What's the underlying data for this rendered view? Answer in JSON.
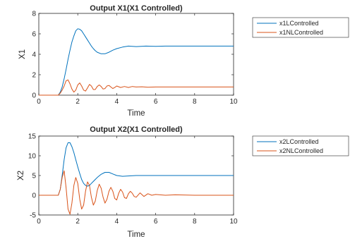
{
  "chart_data": [
    {
      "type": "line",
      "title": "Output X1(X1 Controlled)",
      "xlabel": "Time",
      "ylabel": "X1",
      "xlim": [
        0,
        10
      ],
      "ylim": [
        0,
        8
      ],
      "xticks": [
        "0",
        "2",
        "4",
        "6",
        "8",
        "10"
      ],
      "yticks": [
        "0",
        "2",
        "4",
        "6",
        "8"
      ],
      "grid": false,
      "legend_position": "outside-top-right",
      "series": [
        {
          "name": "x1LControlled",
          "color": "#0072BD",
          "x": [
            0,
            1,
            1.1,
            1.2,
            1.3,
            1.4,
            1.5,
            1.6,
            1.7,
            1.8,
            1.9,
            2.0,
            2.1,
            2.2,
            2.3,
            2.4,
            2.5,
            2.6,
            2.7,
            2.8,
            2.9,
            3.0,
            3.2,
            3.4,
            3.6,
            3.8,
            4.0,
            4.3,
            4.6,
            5.0,
            5.5,
            6.0,
            6.5,
            7.0,
            8.0,
            9.0,
            10.0
          ],
          "y": [
            0,
            0,
            0.3,
            0.8,
            1.6,
            2.5,
            3.5,
            4.4,
            5.2,
            5.8,
            6.3,
            6.5,
            6.45,
            6.3,
            6.0,
            5.7,
            5.4,
            5.1,
            4.8,
            4.55,
            4.35,
            4.2,
            4.05,
            4.05,
            4.2,
            4.4,
            4.55,
            4.7,
            4.8,
            4.75,
            4.8,
            4.78,
            4.8,
            4.8,
            4.8,
            4.8,
            4.8
          ]
        },
        {
          "name": "x1NLControlled",
          "color": "#D95319",
          "x": [
            0,
            1,
            1.1,
            1.2,
            1.3,
            1.4,
            1.5,
            1.6,
            1.7,
            1.8,
            1.9,
            2.0,
            2.1,
            2.2,
            2.3,
            2.4,
            2.5,
            2.6,
            2.7,
            2.8,
            2.9,
            3.0,
            3.1,
            3.2,
            3.3,
            3.4,
            3.5,
            3.6,
            3.7,
            3.8,
            3.9,
            4.0,
            4.2,
            4.4,
            4.6,
            4.8,
            5.0,
            5.3,
            5.6,
            6.0,
            6.5,
            7.0,
            8.0,
            9.0,
            10.0
          ],
          "y": [
            0,
            0,
            0.2,
            0.5,
            0.9,
            1.4,
            1.5,
            1.1,
            0.6,
            0.3,
            0.5,
            1.0,
            1.2,
            0.9,
            0.5,
            0.4,
            0.7,
            1.05,
            0.9,
            0.55,
            0.55,
            0.85,
            1.0,
            0.85,
            0.6,
            0.65,
            0.9,
            0.95,
            0.8,
            0.65,
            0.75,
            0.9,
            0.75,
            0.85,
            0.75,
            0.85,
            0.8,
            0.82,
            0.78,
            0.8,
            0.8,
            0.8,
            0.8,
            0.8,
            0.8
          ]
        }
      ]
    },
    {
      "type": "line",
      "title": "Output X2(X1 Controlled)",
      "xlabel": "Time",
      "ylabel": "X2",
      "xlim": [
        0,
        10
      ],
      "ylim": [
        -5,
        15
      ],
      "xticks": [
        "0",
        "2",
        "4",
        "6",
        "8",
        "10"
      ],
      "yticks": [
        "-5",
        "0",
        "5",
        "10",
        "15"
      ],
      "grid": false,
      "legend_position": "outside-top-right",
      "series": [
        {
          "name": "x2LControlled",
          "color": "#0072BD",
          "x": [
            0,
            1,
            1.1,
            1.2,
            1.3,
            1.4,
            1.5,
            1.6,
            1.7,
            1.8,
            1.9,
            2.0,
            2.1,
            2.2,
            2.3,
            2.4,
            2.5,
            2.6,
            2.7,
            2.8,
            2.9,
            3.0,
            3.2,
            3.4,
            3.6,
            3.8,
            4.0,
            4.3,
            4.6,
            5.0,
            5.5,
            6.0,
            7.0,
            8.0,
            9.0,
            10.0
          ],
          "y": [
            0,
            0,
            1.5,
            5.0,
            9.0,
            12.0,
            13.3,
            13.3,
            12.3,
            10.8,
            9.0,
            7.2,
            5.5,
            4.0,
            3.0,
            2.5,
            2.3,
            2.5,
            3.0,
            3.5,
            4.0,
            4.5,
            5.3,
            5.8,
            5.8,
            5.4,
            5.0,
            4.8,
            4.9,
            5.0,
            5.0,
            5.0,
            5.0,
            5.0,
            5.0,
            5.0
          ]
        },
        {
          "name": "x2NLControlled",
          "color": "#D95319",
          "x": [
            0,
            1.0,
            1.1,
            1.2,
            1.3,
            1.4,
            1.5,
            1.6,
            1.7,
            1.8,
            1.9,
            2.0,
            2.1,
            2.2,
            2.3,
            2.4,
            2.5,
            2.6,
            2.7,
            2.8,
            2.9,
            3.0,
            3.1,
            3.2,
            3.3,
            3.4,
            3.5,
            3.6,
            3.7,
            3.8,
            3.9,
            4.0,
            4.1,
            4.2,
            4.3,
            4.4,
            4.5,
            4.6,
            4.7,
            4.8,
            4.9,
            5.0,
            5.2,
            5.4,
            5.6,
            5.8,
            6.0,
            6.5,
            7.0,
            8.0,
            9.0,
            10.0
          ],
          "y": [
            0,
            0,
            1.5,
            4.5,
            6.2,
            2.0,
            -3.5,
            -4.8,
            -2.0,
            2.5,
            4.5,
            3.0,
            -1.0,
            -3.5,
            -2.5,
            1.0,
            3.4,
            2.5,
            -0.5,
            -2.5,
            -1.5,
            1.2,
            2.8,
            1.8,
            -0.5,
            -2.0,
            -1.0,
            1.0,
            2.0,
            1.0,
            -0.8,
            -1.2,
            0.5,
            1.5,
            0.8,
            -0.6,
            -0.8,
            0.4,
            1.0,
            0.5,
            -0.3,
            -0.5,
            0.6,
            -0.3,
            0.4,
            0.0,
            0.2,
            0.0,
            0.1,
            0.0,
            0.0,
            0.0
          ]
        }
      ]
    }
  ]
}
